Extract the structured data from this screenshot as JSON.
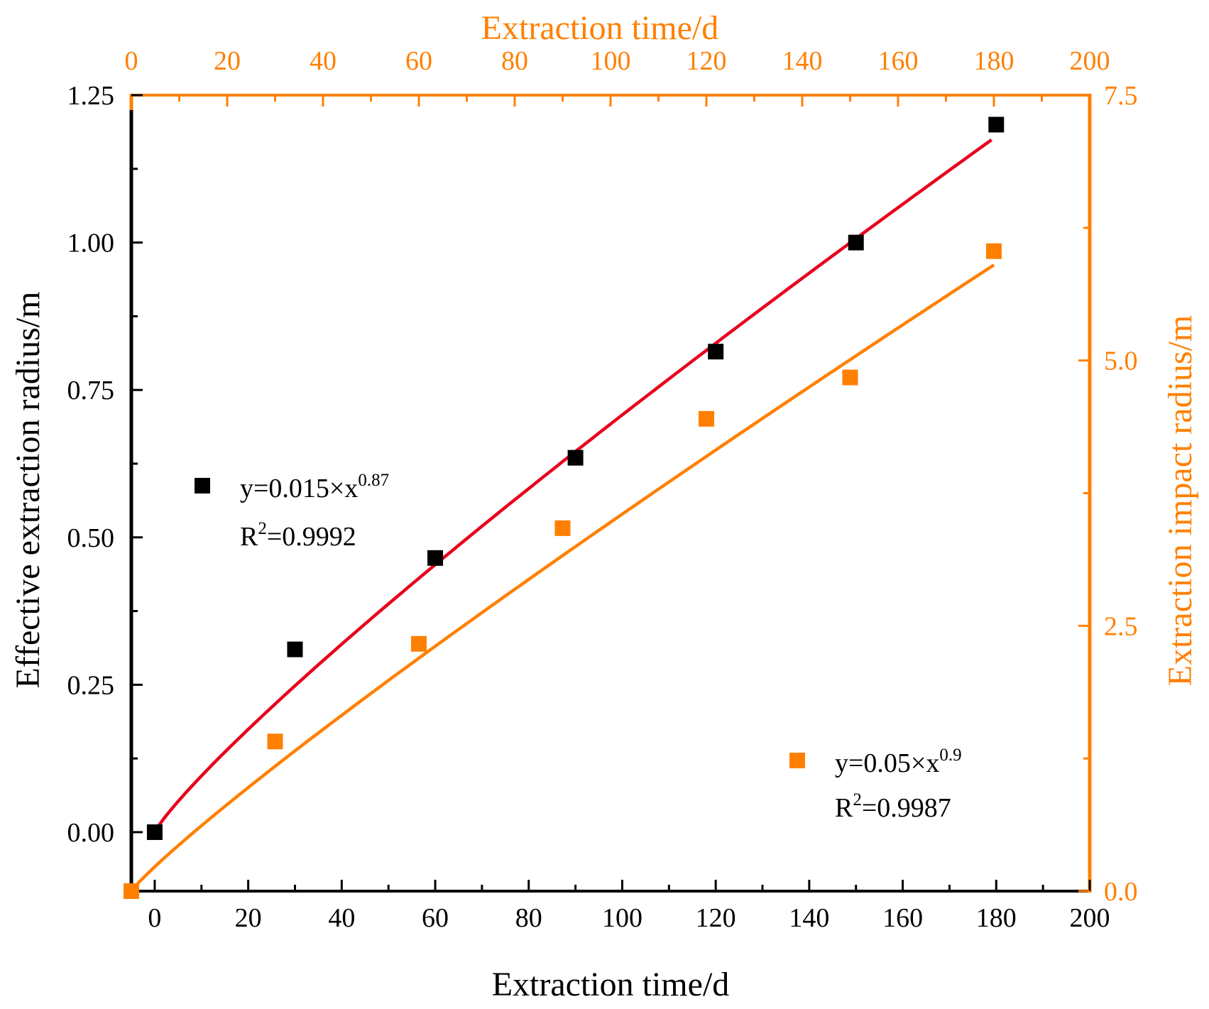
{
  "chart_data": {
    "type": "scatter",
    "title": "",
    "xlabel": "Extraction time/d",
    "x_top_label": "Extraction time/d",
    "ylabel_left": "Effective extraction radius/m",
    "ylabel_right": "Extraction impact radius/m",
    "xlim": [
      -5,
      200
    ],
    "x_top_lim": [
      0,
      200
    ],
    "ylim_left": [
      -0.1,
      1.25
    ],
    "ylim_right": [
      0,
      7.5
    ],
    "x_ticks": [
      "0",
      "20",
      "40",
      "60",
      "80",
      "100",
      "120",
      "140",
      "160",
      "180",
      "200"
    ],
    "x_top_ticks": [
      "0",
      "20",
      "40",
      "60",
      "80",
      "100",
      "120",
      "140",
      "160",
      "180",
      "200"
    ],
    "y_left_ticks": [
      "0.00",
      "0.25",
      "0.50",
      "0.75",
      "1.00",
      "1.25"
    ],
    "y_right_ticks": [
      "0.0",
      "2.5",
      "5.0",
      "7.5"
    ],
    "grid": false,
    "colors": {
      "left_axis": "#000000",
      "right_axis": "#ff8000",
      "fit_effective": "#e8001c",
      "fit_impact": "#ff8000",
      "marker_effective": "#000000",
      "marker_impact": "#ff8000"
    },
    "series": [
      {
        "name": "Effective extraction radius",
        "axis": "left",
        "x": [
          0,
          30,
          60,
          90,
          120,
          150,
          180
        ],
        "y": [
          0.0,
          0.31,
          0.465,
          0.635,
          0.815,
          1.0,
          1.2
        ]
      },
      {
        "name": "Extraction impact radius",
        "axis": "right",
        "x": [
          0,
          30,
          60,
          90,
          120,
          150,
          180
        ],
        "y": [
          0.0,
          1.41,
          2.33,
          3.42,
          4.45,
          4.84,
          6.03
        ]
      }
    ],
    "fits": [
      {
        "name": "fit-effective",
        "axis": "left",
        "coef": 0.015,
        "exp": 0.87,
        "x_from": 0,
        "x_to": 180
      },
      {
        "name": "fit-impact",
        "axis": "right",
        "coef": 0.05,
        "exp": 0.9,
        "x_from": 0,
        "x_to": 180
      }
    ],
    "annotations": {
      "effective": {
        "eq_prefix": "y=0.015×x",
        "eq_exp": "0.87",
        "r2_prefix": "R",
        "r2_sup": "2",
        "r2_value": "=0.9992"
      },
      "impact": {
        "eq_prefix": "y=0.05×x",
        "eq_exp": "0.9",
        "r2_prefix": "R",
        "r2_sup": "2",
        "r2_value": "=0.9987"
      }
    }
  }
}
